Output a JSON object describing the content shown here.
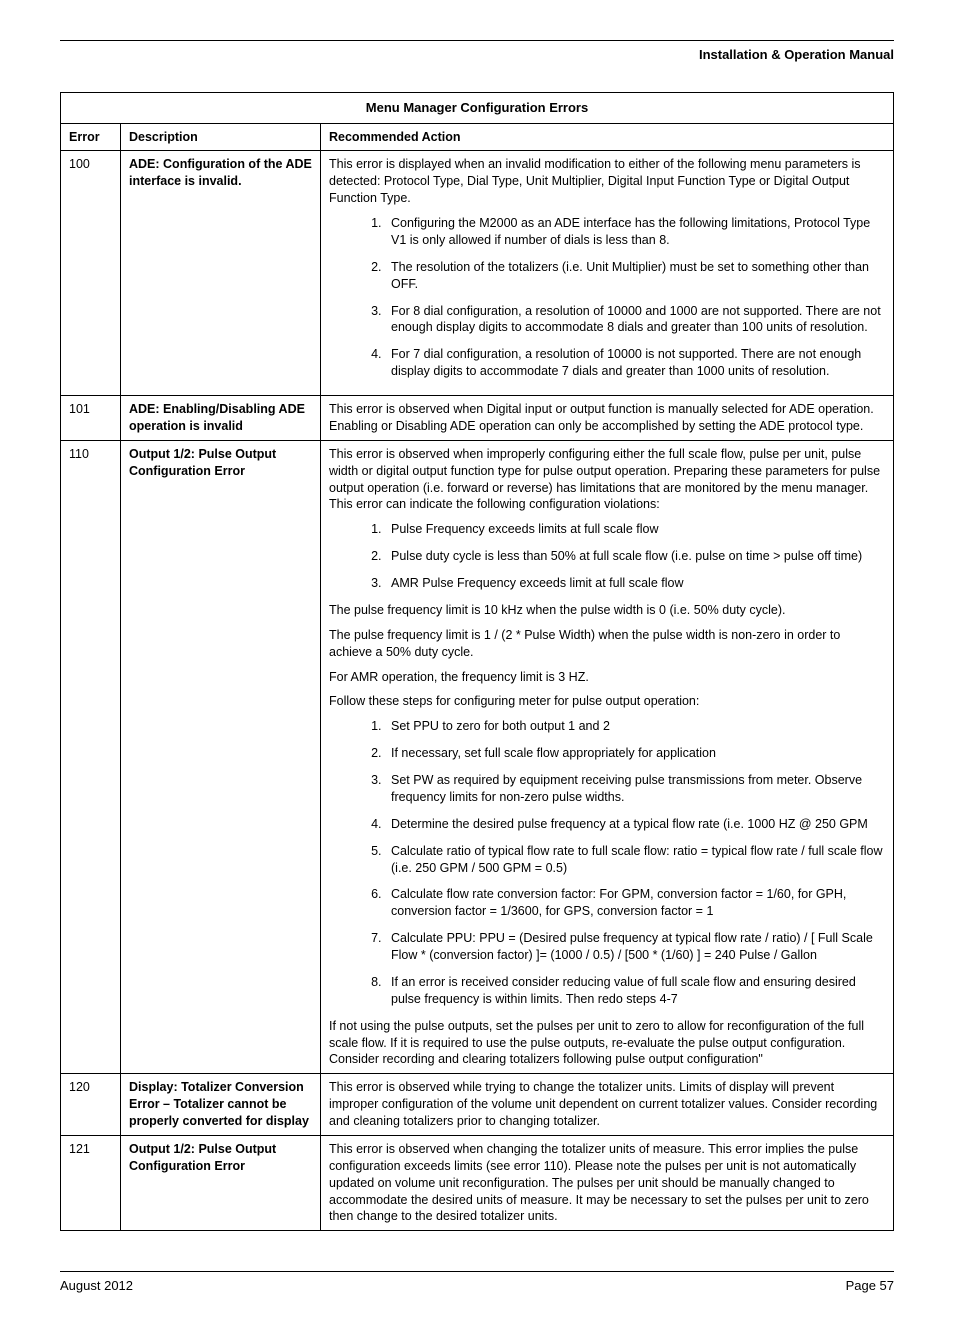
{
  "header": {
    "manual_title": "Installation & Operation Manual"
  },
  "table": {
    "title": "Menu Manager Configuration Errors",
    "columns": [
      "Error",
      "Description",
      "Recommended Action"
    ]
  },
  "rows": {
    "r100": {
      "error": "100",
      "desc": "ADE: Configuration of the ADE interface is invalid.",
      "intro": "This error is displayed when an invalid modification to either of the following menu parameters is detected: Protocol Type, Dial Type, Unit Multiplier, Digital Input Function Type or Digital Output Function Type.",
      "items": [
        "Configuring the M2000 as an ADE interface has the following limitations, Protocol Type V1 is only allowed if number of dials is less than 8.",
        "The resolution of the totalizers (i.e. Unit Multiplier) must be set to something other than OFF.",
        "For 8 dial configuration, a resolution of 10000 and 1000 are not supported. There are not enough display digits to accommodate 8 dials and greater than 100 units of resolution.",
        "For 7 dial configuration, a resolution of 10000 is not supported. There are not enough display digits to accommodate 7 dials and greater than 1000 units of resolution."
      ]
    },
    "r101": {
      "error": "101",
      "desc": "ADE: Enabling/Disabling ADE operation is invalid",
      "action": "This error is observed when Digital input or output function is manually selected for ADE operation. Enabling or Disabling ADE operation can only be accomplished by setting the ADE protocol type."
    },
    "r110": {
      "error": "110",
      "desc": "Output 1/2: Pulse Output Configuration Error",
      "intro": "This error is observed when improperly configuring either the full scale flow, pulse per unit, pulse width or digital output function type for pulse output operation. Preparing these parameters for pulse output operation (i.e. forward or reverse) has limitations that are monitored by the menu manager. This error can indicate the following configuration violations:",
      "violations": [
        "Pulse Frequency exceeds limits at full scale flow",
        "Pulse duty cycle is less than 50% at full scale flow (i.e. pulse on time > pulse off time)",
        "AMR Pulse Frequency exceeds limit at full scale flow"
      ],
      "mid_paras": [
        "The pulse frequency limit is 10 kHz when the pulse width is 0 (i.e. 50% duty cycle).",
        "The pulse frequency limit is 1 / (2 * Pulse Width) when the pulse width is non-zero in order to achieve a 50% duty cycle.",
        "For AMR operation, the frequency limit is 3 HZ.",
        "Follow these steps for configuring meter for pulse output operation:"
      ],
      "steps": [
        "Set PPU to zero for both output 1 and 2",
        "If necessary, set full scale flow appropriately for application",
        "Set PW as required by equipment receiving pulse transmissions from meter. Observe frequency limits for non-zero pulse widths.",
        "Determine the desired pulse frequency at a typical flow rate (i.e. 1000 HZ @ 250 GPM",
        "Calculate ratio of typical flow rate to full scale flow: ratio = typical flow rate / full scale flow (i.e. 250 GPM / 500 GPM = 0.5)",
        "Calculate flow rate conversion factor: For GPM, conversion factor = 1/60, for GPH, conversion factor = 1/3600, for GPS, conversion factor = 1",
        "Calculate PPU: PPU = (Desired pulse frequency at typical flow rate / ratio) / [ Full Scale Flow * (conversion factor) ]= (1000 / 0.5) / [500 * (1/60) ] = 240 Pulse / Gallon",
        "If an error is received consider reducing value of full scale flow and ensuring desired pulse frequency is within limits. Then redo steps 4-7"
      ],
      "outro": "If not using the pulse outputs, set the pulses per unit to zero to allow for reconfiguration of the full scale flow. If it is required to use the pulse outputs, re-evaluate the pulse output configuration. Consider recording and clearing totalizers following pulse output configuration\""
    },
    "r120": {
      "error": "120",
      "desc": "Display: Totalizer Conversion Error – Totalizer cannot be properly converted for display",
      "action": "This error is observed while trying to change the totalizer units. Limits of display will prevent improper configuration of the volume unit dependent on current totalizer values. Consider recording and cleaning totalizers prior to changing totalizer."
    },
    "r121": {
      "error": "121",
      "desc": "Output 1/2: Pulse Output Configuration Error",
      "action": "This error is observed when changing the totalizer units of measure. This error implies the pulse configuration exceeds limits (see error 110). Please note the pulses per unit is not automatically updated on volume unit reconfiguration. The pulses per unit should be manually changed to accommodate the desired units of measure. It may be necessary to set the pulses per unit to zero then change to the desired totalizer units."
    }
  },
  "footer": {
    "date": "August 2012",
    "page": "Page 57"
  }
}
